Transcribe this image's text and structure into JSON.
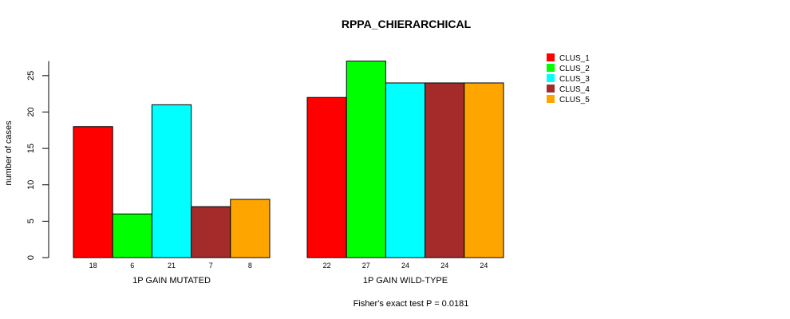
{
  "chart_data": {
    "type": "bar",
    "title": "RPPA_CHIERARCHICAL",
    "ylabel": "number of cases",
    "ylim": [
      0,
      27
    ],
    "yticks": [
      0,
      5,
      10,
      15,
      20,
      25
    ],
    "footer": "Fisher's exact test P = 0.0181",
    "groups": [
      {
        "label": "1P GAIN MUTATED",
        "values": [
          18,
          6,
          21,
          7,
          8
        ]
      },
      {
        "label": "1P GAIN WILD-TYPE",
        "values": [
          22,
          27,
          24,
          24,
          24
        ]
      }
    ],
    "series": [
      {
        "name": "CLUS_1",
        "color": "#ff0000"
      },
      {
        "name": "CLUS_2",
        "color": "#00ff00"
      },
      {
        "name": "CLUS_3",
        "color": "#00ffff"
      },
      {
        "name": "CLUS_4",
        "color": "#a52a2a"
      },
      {
        "name": "CLUS_5",
        "color": "#ffa500"
      }
    ]
  }
}
